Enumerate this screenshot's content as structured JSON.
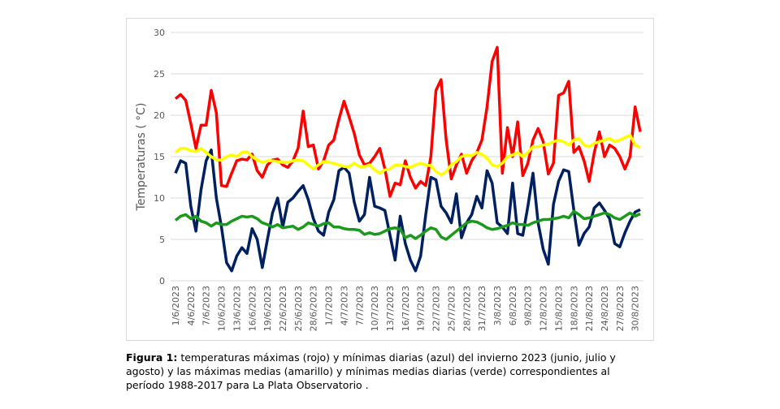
{
  "chart_data": {
    "type": "line",
    "ylabel": "Temperaturas (  °C)",
    "categories": [
      "1/6",
      null,
      null,
      "4/6",
      null,
      null,
      "7/6",
      null,
      null,
      "10/6",
      null,
      null,
      "13/6",
      null,
      null,
      "16/6",
      null,
      null,
      "19/6",
      null,
      null,
      "22/6",
      null,
      null,
      "25/6",
      null,
      null,
      "28/6",
      null,
      null,
      "1/7",
      null,
      null,
      "4/7",
      null,
      null,
      "7/7",
      null,
      null,
      "10/7",
      null,
      null,
      "13/7",
      null,
      null,
      "16/7",
      null,
      null,
      "19/7",
      null,
      null,
      "22/7",
      null,
      null,
      "25/7",
      null,
      null,
      "28/7",
      null,
      null,
      "31/7",
      null,
      null,
      "3/8",
      null,
      null,
      "6/8",
      null,
      null,
      "9/8",
      null,
      null,
      "12/8",
      null,
      null,
      "15/8",
      null,
      null,
      "18/8",
      null,
      null,
      "21/8",
      null,
      null,
      "24/8",
      null,
      null,
      "27/8",
      null,
      null,
      "30/8",
      null
    ],
    "category_suffix": "/2023",
    "series": [
      {
        "color": "#ff0000",
        "values": [
          22,
          22.5,
          21.8,
          19,
          16,
          18.8,
          18.8,
          23,
          20.3,
          11.5,
          11.4,
          13,
          14.5,
          14.7,
          14.6,
          15.3,
          13.3,
          12.5,
          14,
          14.6,
          14.7,
          14,
          13.7,
          14.5,
          16,
          20.5,
          16.2,
          16.4,
          13.5,
          14.5,
          16.4,
          17,
          19.5,
          21.7,
          19.8,
          17.8,
          15.2,
          14,
          14.2,
          15,
          16,
          13.5,
          10.2,
          11.8,
          11.6,
          14.5,
          12.5,
          11.2,
          12,
          11.5,
          15,
          23,
          24.3,
          17,
          12.3,
          14,
          15.3,
          13,
          14.5,
          15.5,
          17,
          21,
          26.5,
          28.2,
          13,
          18.5,
          15,
          19.2,
          12.7,
          14.2,
          17,
          18.4,
          16.8,
          12.9,
          14.2,
          22.4,
          22.7,
          24.1,
          15.5,
          16.2,
          14.5,
          12,
          15.5,
          18,
          15,
          16.4,
          16,
          15,
          13.5,
          15,
          21,
          18
        ]
      },
      {
        "color": "#002060",
        "values": [
          13,
          14.5,
          14.2,
          9,
          6,
          11,
          14.5,
          15.8,
          10,
          6.5,
          2.2,
          1.2,
          3,
          4,
          3.3,
          6.3,
          5,
          1.6,
          5,
          8.2,
          10,
          6.5,
          9.5,
          10,
          10.8,
          11.5,
          9.8,
          7.5,
          6,
          5.5,
          8.3,
          9.8,
          13.3,
          13.7,
          13,
          9.5,
          7.2,
          8,
          12.5,
          9,
          8.8,
          8.5,
          5.5,
          2.5,
          7.8,
          4.5,
          2.5,
          1.2,
          3,
          8,
          12.5,
          12.2,
          9,
          8.2,
          7,
          10.5,
          5.2,
          7,
          8,
          10.2,
          8.8,
          13.3,
          11.8,
          7,
          6.5,
          5.7,
          11.8,
          5.7,
          5.5,
          9,
          13,
          7,
          3.8,
          2,
          9.2,
          12,
          13.4,
          13.2,
          8.5,
          4.3,
          5.7,
          6.5,
          8.8,
          9.4,
          8.5,
          7.5,
          4.5,
          4.1,
          5.8,
          7.2,
          8.3,
          8.6
        ]
      },
      {
        "color": "#ffff00",
        "values": [
          15.5,
          16,
          16,
          15.7,
          15.6,
          16,
          15.5,
          15,
          14.6,
          14.6,
          15,
          15.2,
          15,
          15.5,
          15.6,
          15,
          14.6,
          14.3,
          14.5,
          14.5,
          14.4,
          14.3,
          14.3,
          14.5,
          14.6,
          14.5,
          14,
          13.5,
          14,
          14.4,
          14.3,
          14.2,
          14,
          13.8,
          13.8,
          14.2,
          13.8,
          13.8,
          14,
          13.4,
          13,
          13.4,
          13.5,
          14,
          14,
          13.8,
          13.7,
          14,
          14.2,
          14,
          13.9,
          13.2,
          12.8,
          13.2,
          14,
          14.4,
          15,
          15.2,
          15.1,
          15.5,
          15.3,
          14.8,
          14,
          13.8,
          14.2,
          15,
          15.2,
          15.5,
          15,
          15.5,
          16.2,
          16.2,
          16.4,
          16.5,
          16.8,
          17,
          16.8,
          16.4,
          17,
          17.2,
          16.4,
          16.2,
          16.6,
          16.8,
          17,
          17.2,
          16.8,
          17,
          17.3,
          17.6,
          16.4,
          16.1
        ]
      },
      {
        "color": "#1a9a1a",
        "values": [
          7.3,
          7.8,
          8,
          7.5,
          7.8,
          7.2,
          7,
          6.6,
          7,
          6.8,
          6.8,
          7.2,
          7.5,
          7.8,
          7.7,
          7.8,
          7.5,
          7,
          6.8,
          6.5,
          6.8,
          6.4,
          6.5,
          6.6,
          6.2,
          6.5,
          7,
          6.8,
          6.6,
          6.9,
          7,
          6.5,
          6.5,
          6.3,
          6.2,
          6.2,
          6.1,
          5.6,
          5.8,
          5.6,
          5.7,
          6,
          6.3,
          6.4,
          6.2,
          5.2,
          5.5,
          5.1,
          5.5,
          6,
          6.4,
          6.2,
          5.3,
          5,
          5.5,
          6,
          6.5,
          7,
          7.2,
          7.1,
          6.8,
          6.4,
          6.2,
          6.3,
          6.5,
          6.7,
          7,
          6.8,
          6.8,
          6.7,
          7,
          7.2,
          7.4,
          7.4,
          7.5,
          7.6,
          7.8,
          7.6,
          8.4,
          8,
          7.5,
          7.6,
          7.8,
          8,
          8.2,
          8,
          7.6,
          7.4,
          7.8,
          8.2,
          7.8,
          8.1
        ]
      }
    ],
    "ylim": [
      0,
      30
    ],
    "yticks": [
      0,
      5,
      10,
      15,
      20,
      25,
      30
    ],
    "grid": true
  },
  "caption": {
    "label": "Figura 1:",
    "text": "temperaturas máximas (rojo) y mínimas diarias (azul) del invierno 2023 (junio, julio y agosto) y las máximas medias (amarillo) y mínimas medias diarias (verde) correspondientes al período 1988-2017 para La Plata Observatorio ."
  }
}
